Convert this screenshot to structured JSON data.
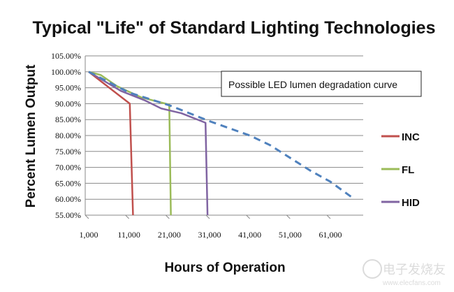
{
  "chart_data": {
    "type": "line",
    "title": "Typical \"Life\" of Standard Lighting Technologies",
    "xlabel": "Hours of Operation",
    "ylabel": "Percent Lumen Output",
    "xlim": [
      1000,
      68000
    ],
    "ylim": [
      55,
      105
    ],
    "x_ticks": [
      "1,000",
      "11,000",
      "21,000",
      "31,000",
      "41,000",
      "51,000",
      "61,000"
    ],
    "x_tick_values": [
      1000,
      11000,
      21000,
      31000,
      41000,
      51000,
      61000
    ],
    "y_ticks": [
      "105.00%",
      "100.00%",
      "95.00%",
      "90.00%",
      "85.00%",
      "80.00%",
      "75.00%",
      "70.00%",
      "65.00%",
      "60.00%",
      "55.00%"
    ],
    "y_tick_values": [
      105,
      100,
      95,
      90,
      85,
      80,
      75,
      70,
      65,
      60,
      55
    ],
    "grid": "horizontal",
    "legend_placement": "right",
    "annotation": "Possible LED lumen degradation curve",
    "series": [
      {
        "name": "INC",
        "color": "#c0504d",
        "style": "solid",
        "points": [
          [
            1000,
            100
          ],
          [
            11200,
            90
          ],
          [
            12000,
            55
          ]
        ]
      },
      {
        "name": "FL",
        "color": "#9bbb59",
        "style": "solid",
        "points": [
          [
            1000,
            100
          ],
          [
            4000,
            99
          ],
          [
            8000,
            95.5
          ],
          [
            14000,
            92
          ],
          [
            21000,
            89.7
          ],
          [
            21400,
            55
          ]
        ]
      },
      {
        "name": "HID",
        "color": "#8064a2",
        "style": "solid",
        "points": [
          [
            1000,
            100
          ],
          [
            9000,
            94
          ],
          [
            15000,
            91
          ],
          [
            19000,
            88.5
          ],
          [
            24000,
            87
          ],
          [
            30000,
            84
          ],
          [
            30500,
            55
          ]
        ]
      },
      {
        "color": "#4f81bd",
        "style": "dashed",
        "points": [
          [
            1000,
            100
          ],
          [
            11000,
            93.5
          ],
          [
            21000,
            89.5
          ],
          [
            31000,
            84.5
          ],
          [
            41000,
            80
          ],
          [
            46000,
            77
          ],
          [
            51000,
            73
          ],
          [
            56000,
            69
          ],
          [
            61000,
            65.5
          ],
          [
            67000,
            60
          ]
        ]
      }
    ]
  },
  "watermark": {
    "text_cn": "电子发烧友",
    "url": "www.elecfans.com"
  }
}
